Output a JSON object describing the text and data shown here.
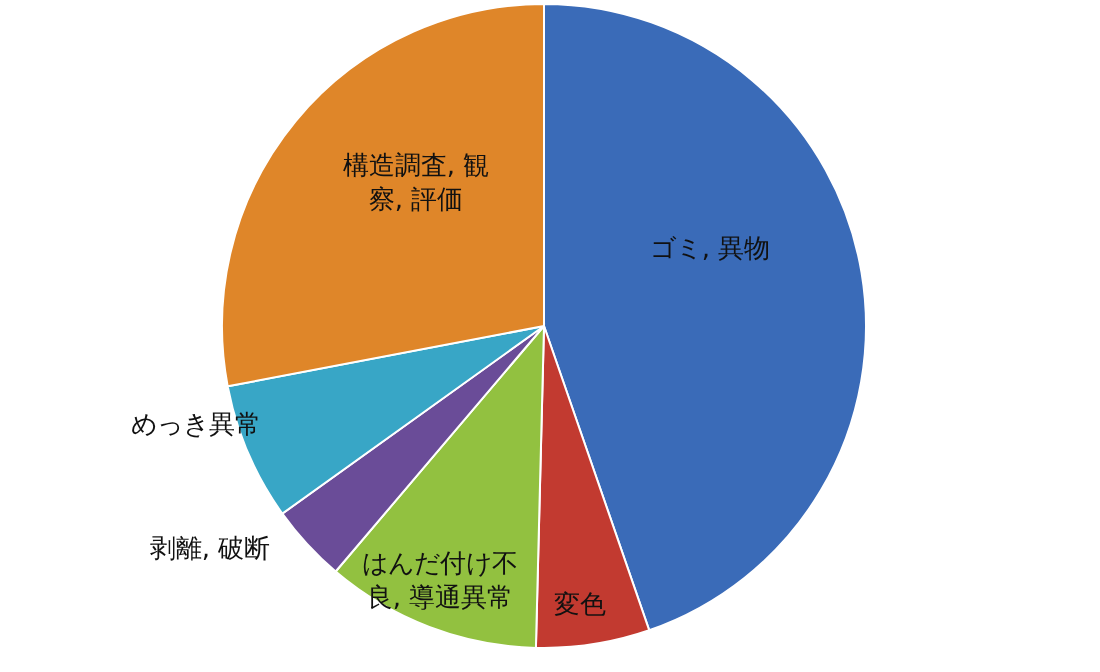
{
  "chart_data": {
    "type": "pie",
    "categories": [
      "ゴミ, 異物",
      "変色",
      "はんだ付け不良, 導通異常",
      "剥離, 破断",
      "めっき異常",
      "構造調査, 観察, 評価"
    ],
    "values": [
      44.7,
      5.7,
      10.8,
      3.9,
      6.9,
      28.0
    ],
    "colors": [
      "#3a6bb8",
      "#c23a30",
      "#92c140",
      "#6a4c98",
      "#38a6c6",
      "#df8629"
    ]
  }
}
